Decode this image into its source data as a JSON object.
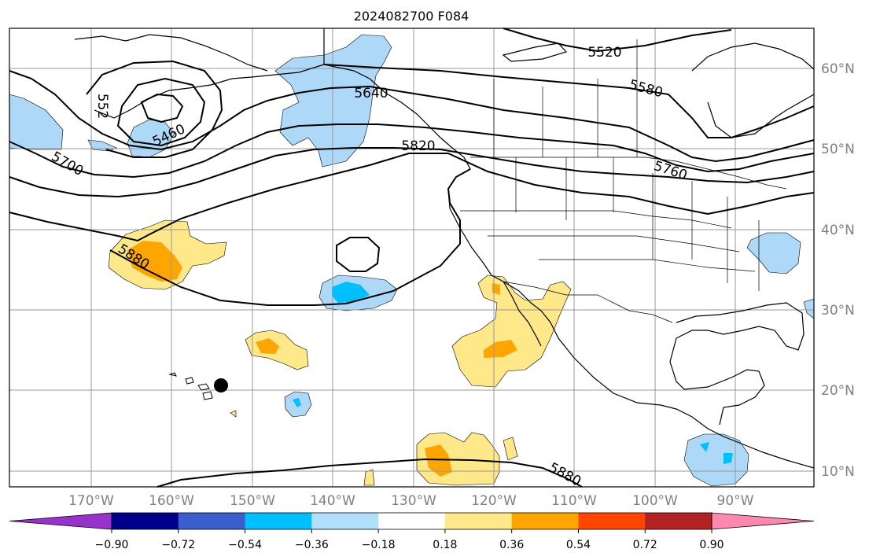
{
  "title": "2024082700 F084",
  "latitude_labels": [
    "60°N",
    "50°N",
    "40°N",
    "30°N",
    "20°N",
    "10°N"
  ],
  "longitude_labels": [
    "170°W",
    "160°W",
    "150°W",
    "140°W",
    "130°W",
    "120°W",
    "110°W",
    "100°W",
    "90°W"
  ],
  "contour_labels": [
    "5520",
    "5580",
    "5640",
    "5460",
    "552",
    "5700",
    "5820",
    "5760",
    "5880",
    "5880"
  ],
  "colorbar": {
    "ticks": [
      "−0.90",
      "−0.72",
      "−0.54",
      "−0.36",
      "−0.18",
      "0.18",
      "0.36",
      "0.54",
      "0.72",
      "0.90"
    ],
    "colors": [
      "#9932cc",
      "#00008b",
      "#3a5fcd",
      "#00bfff",
      "#b0e0fb",
      "#ffffff",
      "#ffe88a",
      "#ffa500",
      "#ff4500",
      "#b22222",
      "#ff88b0"
    ]
  },
  "fill_colors": {
    "light_blue": "#add8f7",
    "blue": "#00bfff",
    "light_yellow": "#ffe88a",
    "orange": "#ffa500"
  },
  "marker": "black-dot"
}
